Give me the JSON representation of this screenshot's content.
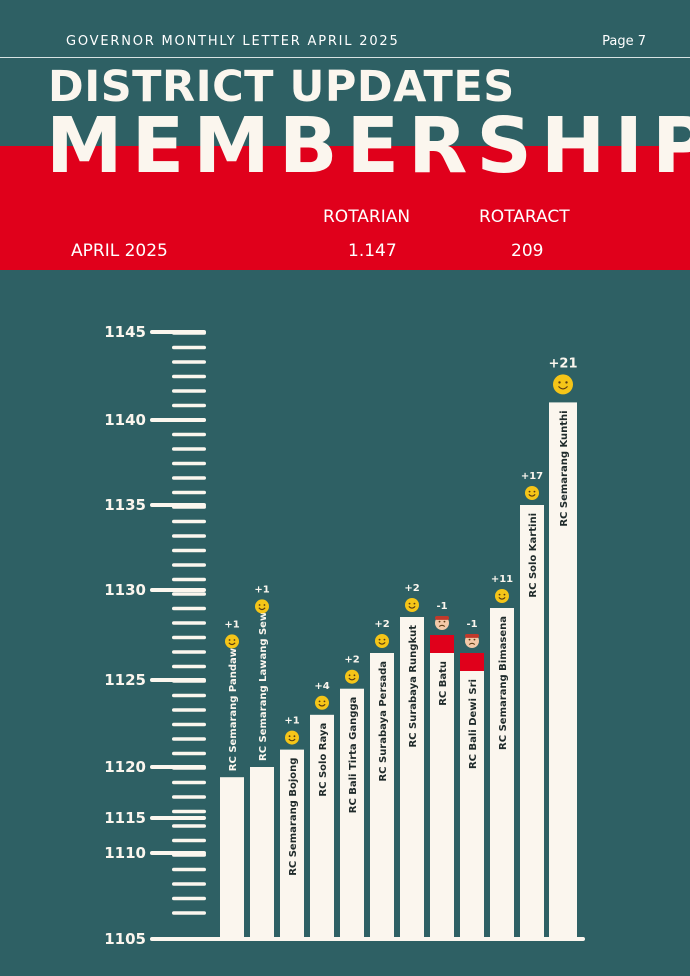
{
  "header": {
    "newsletter": "GOVERNOR MONTHLY LETTER APRIL 2025",
    "page": "Page 7"
  },
  "title": {
    "line1": "DISTRICT UPDATES",
    "line2": "MEMBERSHIP"
  },
  "summary": {
    "period": "APRIL 2025",
    "rotarian_label": "ROTARIAN",
    "rotarian_value": "1.147",
    "rotaract_label": "ROTARACT",
    "rotaract_value": "209"
  },
  "colors": {
    "background": "#2e6064",
    "accent_red": "#e0001b",
    "bar": "#fbf6ee",
    "emoji_yellow": "#f5c518"
  },
  "chart_data": {
    "type": "bar",
    "ytick_labels": [
      "1105",
      "1110",
      "1115",
      "1120",
      "1125",
      "1130",
      "1135",
      "1140",
      "1145"
    ],
    "ylim": [
      1105,
      1145
    ],
    "categories": [
      "RC Semarang Pandawa",
      "RC Semarang Lawang Sewu",
      "RC Semarang Bojong",
      "RC Solo Raya",
      "RC Bali Tirta Gangga",
      "RC Surabaya Persada",
      "RC Surabaya Rungkut",
      "RC Batu",
      "RC Bali Dewi Sri",
      "RC Semarang Bimasena",
      "RC Solo Kartini",
      "RC Semarang Kunthi"
    ],
    "changes": [
      "+1",
      "+1",
      "+1",
      "+4",
      "+2",
      "+2",
      "+2",
      "-1",
      "-1",
      "+11",
      "+17",
      "+21"
    ],
    "values": [
      1119,
      1120,
      1121,
      1123,
      1124.5,
      1126.5,
      1128.5,
      1126.5,
      1125.5,
      1129,
      1135,
      1141
    ],
    "losses": [
      0,
      0,
      0,
      0,
      0,
      0,
      0,
      1,
      1,
      0,
      0,
      0
    ],
    "grid": false,
    "legend": "none"
  }
}
